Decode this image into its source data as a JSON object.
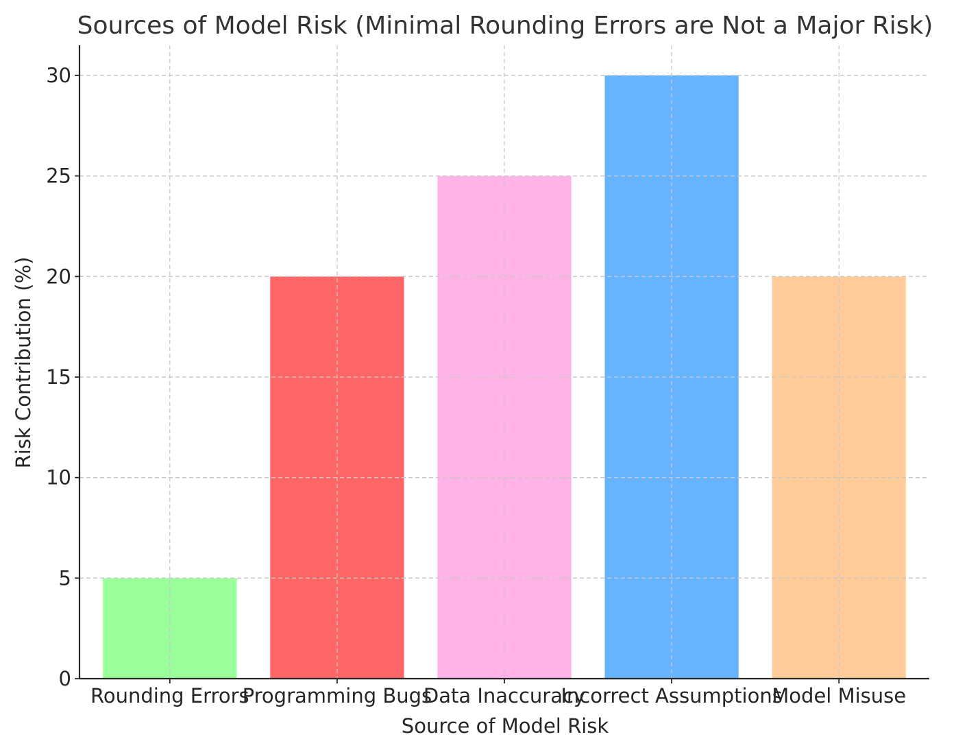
{
  "chart_data": {
    "type": "bar",
    "title": "Sources of Model Risk (Minimal Rounding Errors are Not a Major Risk)",
    "xlabel": "Source of Model Risk",
    "ylabel": "Risk Contribution (%)",
    "categories": [
      "Rounding Errors",
      "Programming Bugs",
      "Data Inaccuracy",
      "Incorrect Assumptions",
      "Model Misuse"
    ],
    "values": [
      5,
      20,
      25,
      30,
      20
    ],
    "colors": [
      "#99ff99",
      "#ff6666",
      "#ffb3e6",
      "#66b3ff",
      "#ffcc99"
    ],
    "ylim": [
      0,
      31.5
    ],
    "yticks": [
      0,
      5,
      10,
      15,
      20,
      25,
      30
    ],
    "grid": true
  }
}
